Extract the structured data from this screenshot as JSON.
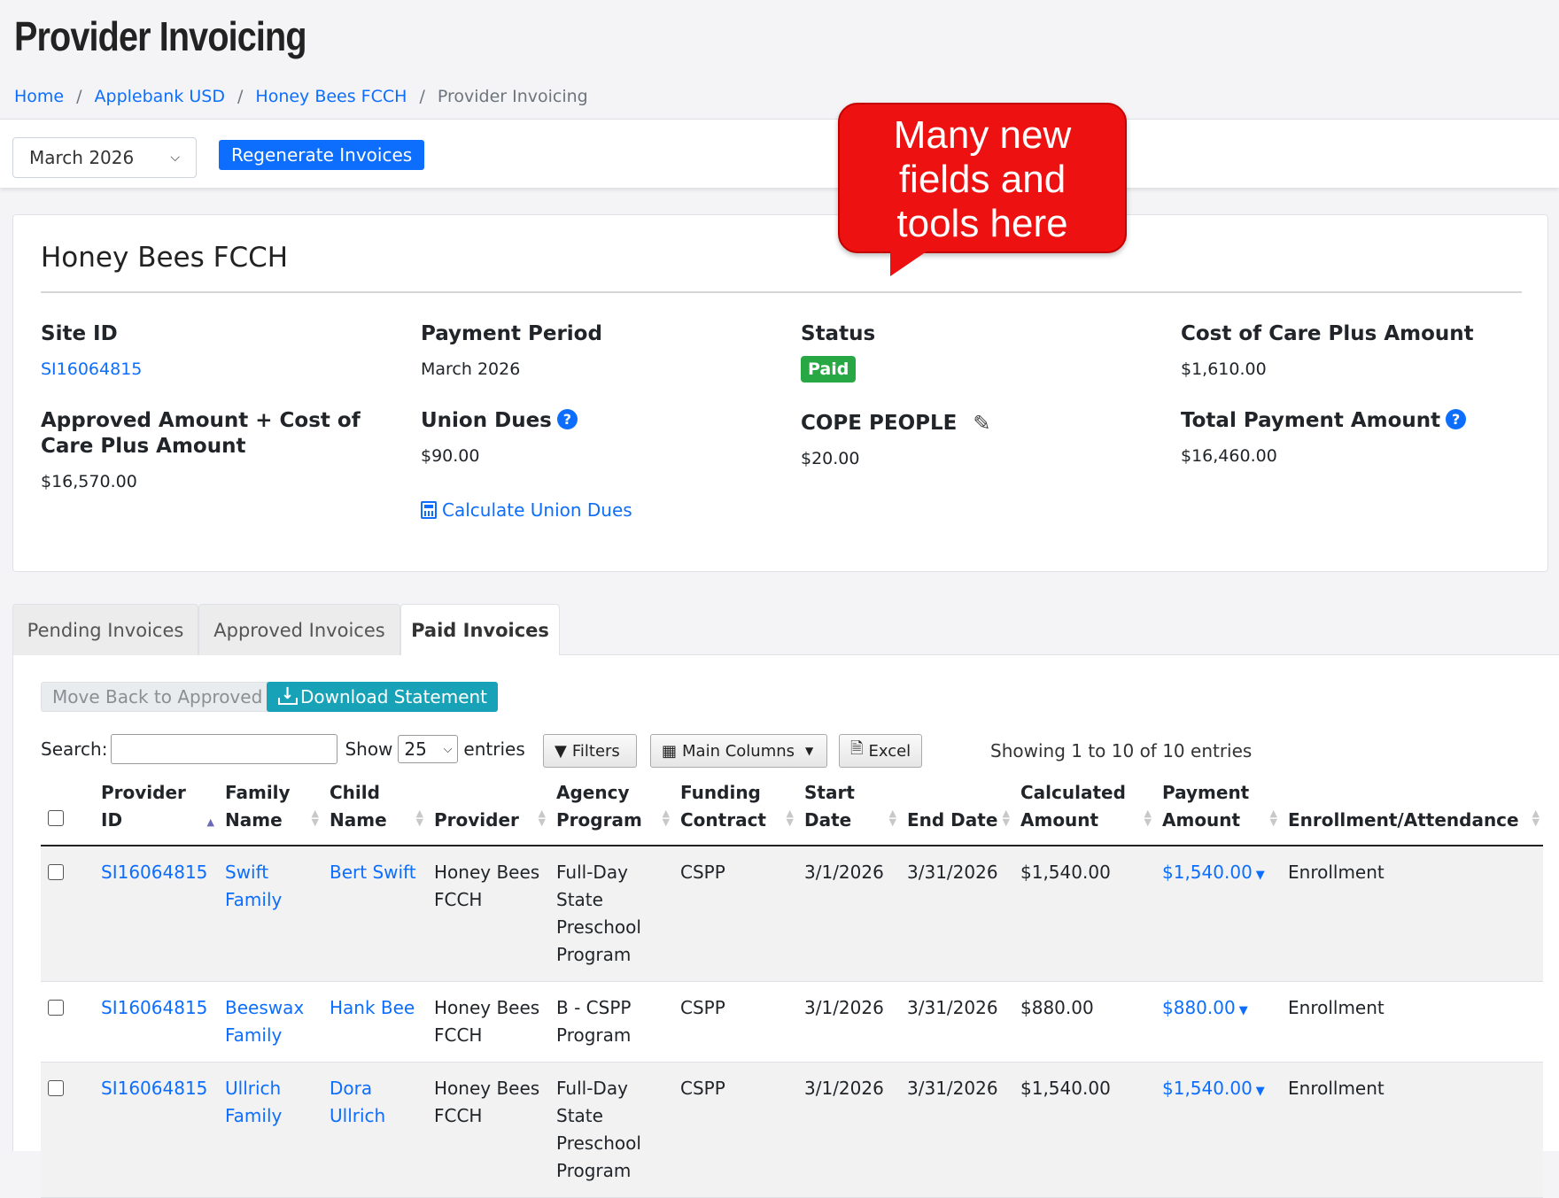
{
  "header": {
    "title": "Provider Invoicing",
    "breadcrumb": [
      {
        "label": "Home"
      },
      {
        "label": "Applebank USD"
      },
      {
        "label": "Honey Bees FCCH"
      },
      {
        "label": "Provider Invoicing"
      }
    ]
  },
  "toolbar": {
    "month_value": "March 2026",
    "regenerate_label": "Regenerate Invoices"
  },
  "callout": {
    "text_lines": [
      "Many new",
      "fields and",
      "tools here"
    ]
  },
  "summary": {
    "title": "Honey Bees FCCH",
    "site_id_label": "Site ID",
    "site_id_value": "SI16064815",
    "payment_period_label": "Payment Period",
    "payment_period_value": "March 2026",
    "status_label": "Status",
    "status_value": "Paid",
    "cost_of_care_label": "Cost of Care Plus Amount",
    "cost_of_care_value": "$1,610.00",
    "approved_amount_label": "Approved Amount + Cost of Care Plus Amount",
    "approved_amount_value": "$16,570.00",
    "union_dues_label": "Union Dues",
    "union_dues_value": "$90.00",
    "calculate_union_dues_label": "Calculate Union Dues",
    "cope_label": "COPE PEOPLE",
    "cope_value": "$20.00",
    "total_payment_label": "Total Payment Amount",
    "total_payment_value": "$16,460.00"
  },
  "tabs": [
    {
      "label": "Pending Invoices"
    },
    {
      "label": "Approved Invoices"
    },
    {
      "label": "Paid Invoices",
      "active": true
    }
  ],
  "actions": {
    "move_back_label": "Move Back to Approved",
    "download_label": "Download Statement"
  },
  "datatable": {
    "search_label": "Search:",
    "show_label": "Show",
    "show_value": "25",
    "entries_label": "entries",
    "filters_label": "Filters",
    "main_columns_label": "Main Columns",
    "excel_label": "Excel",
    "info": "Showing 1 to 10 of 10 entries",
    "columns": [
      "Provider ID",
      "Family Name",
      "Child Name",
      "Provider",
      "Agency Program",
      "Funding Contract",
      "Start Date",
      "End Date",
      "Calculated Amount",
      "Payment Amount",
      "Enrollment/Attendance"
    ],
    "rows": [
      {
        "provider_id": "SI16064815",
        "family": "Swift Family",
        "child": "Bert Swift",
        "provider": "Honey Bees FCCH",
        "program": "Full-Day State Preschool Program",
        "contract": "CSPP",
        "start": "3/1/2026",
        "end": "3/31/2026",
        "calculated": "$1,540.00",
        "payment": "$1,540.00",
        "type": "Enrollment"
      },
      {
        "provider_id": "SI16064815",
        "family": "Beeswax Family",
        "child": "Hank Bee",
        "provider": "Honey Bees FCCH",
        "program": "B - CSPP Program",
        "contract": "CSPP",
        "start": "3/1/2026",
        "end": "3/31/2026",
        "calculated": "$880.00",
        "payment": "$880.00",
        "type": "Enrollment"
      },
      {
        "provider_id": "SI16064815",
        "family": "Ullrich Family",
        "child": "Dora Ullrich",
        "provider": "Honey Bees FCCH",
        "program": "Full-Day State Preschool Program",
        "contract": "CSPP",
        "start": "3/1/2026",
        "end": "3/31/2026",
        "calculated": "$1,540.00",
        "payment": "$1,540.00",
        "type": "Enrollment"
      }
    ]
  }
}
